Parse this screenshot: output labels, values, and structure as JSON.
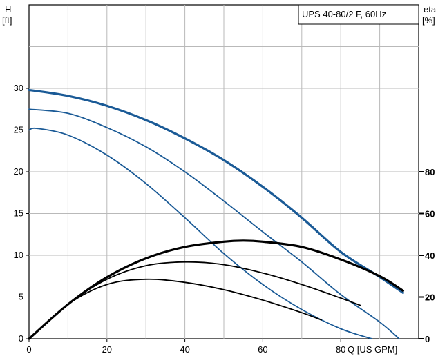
{
  "chart_data": {
    "type": "line",
    "title": "UPS 40-80/2 F, 60Hz",
    "xlabel": "Q [US GPM]",
    "ylabel_left": [
      "H",
      "[ft]"
    ],
    "ylabel_right": [
      "eta",
      "[%]"
    ],
    "xlim": [
      0,
      100
    ],
    "ylim_left": [
      0,
      40
    ],
    "ylim_right": [
      0,
      160
    ],
    "x_ticks": [
      0,
      20,
      40,
      60,
      80
    ],
    "y_left_ticks": [
      0,
      5,
      10,
      15,
      20,
      25,
      30
    ],
    "y_right_ticks": [
      0,
      20,
      40,
      60,
      80
    ],
    "grid": true,
    "series": [
      {
        "axis": "left",
        "color": "#1a5a96",
        "width": 3.2,
        "x": [
          0,
          10,
          20,
          30,
          40,
          50,
          60,
          70,
          80,
          90,
          96
        ],
        "values": [
          29.8,
          29.1,
          27.9,
          26.2,
          24.0,
          21.4,
          18.2,
          14.5,
          10.4,
          7.4,
          5.5
        ]
      },
      {
        "axis": "left",
        "color": "#1a5a96",
        "width": 1.8,
        "x": [
          0,
          10,
          20,
          30,
          40,
          50,
          60,
          70,
          80,
          90,
          95
        ],
        "values": [
          27.5,
          27.0,
          25.3,
          23.0,
          20.0,
          16.5,
          12.8,
          9.2,
          5.3,
          2.0,
          0
        ]
      },
      {
        "axis": "left",
        "color": "#1a5a96",
        "width": 1.8,
        "x": [
          0,
          2,
          10,
          20,
          30,
          40,
          50,
          60,
          70,
          80,
          88
        ],
        "values": [
          25.0,
          25.2,
          24.4,
          22.0,
          18.6,
          14.5,
          10.2,
          6.5,
          3.5,
          1.2,
          0
        ]
      },
      {
        "axis": "right",
        "color": "#000000",
        "width": 3.2,
        "x": [
          0,
          10,
          20,
          30,
          40,
          50,
          55,
          60,
          70,
          80,
          90,
          96
        ],
        "values": [
          0,
          16.5,
          29.5,
          38.5,
          44.0,
          46.5,
          47.0,
          46.5,
          44.0,
          38.0,
          30.0,
          23.0
        ]
      },
      {
        "axis": "right",
        "color": "#000000",
        "width": 1.8,
        "x": [
          0,
          10,
          20,
          30,
          40,
          50,
          60,
          70,
          80,
          85
        ],
        "values": [
          0,
          16.5,
          28.5,
          35.0,
          36.8,
          35.5,
          31.5,
          26.0,
          19.5,
          16.0
        ]
      },
      {
        "axis": "right",
        "color": "#000000",
        "width": 1.8,
        "x": [
          0,
          10,
          20,
          30,
          40,
          50,
          60,
          70,
          75
        ],
        "values": [
          0,
          16.5,
          26.0,
          28.5,
          27.0,
          23.5,
          18.5,
          12.5,
          9.0
        ]
      }
    ]
  }
}
